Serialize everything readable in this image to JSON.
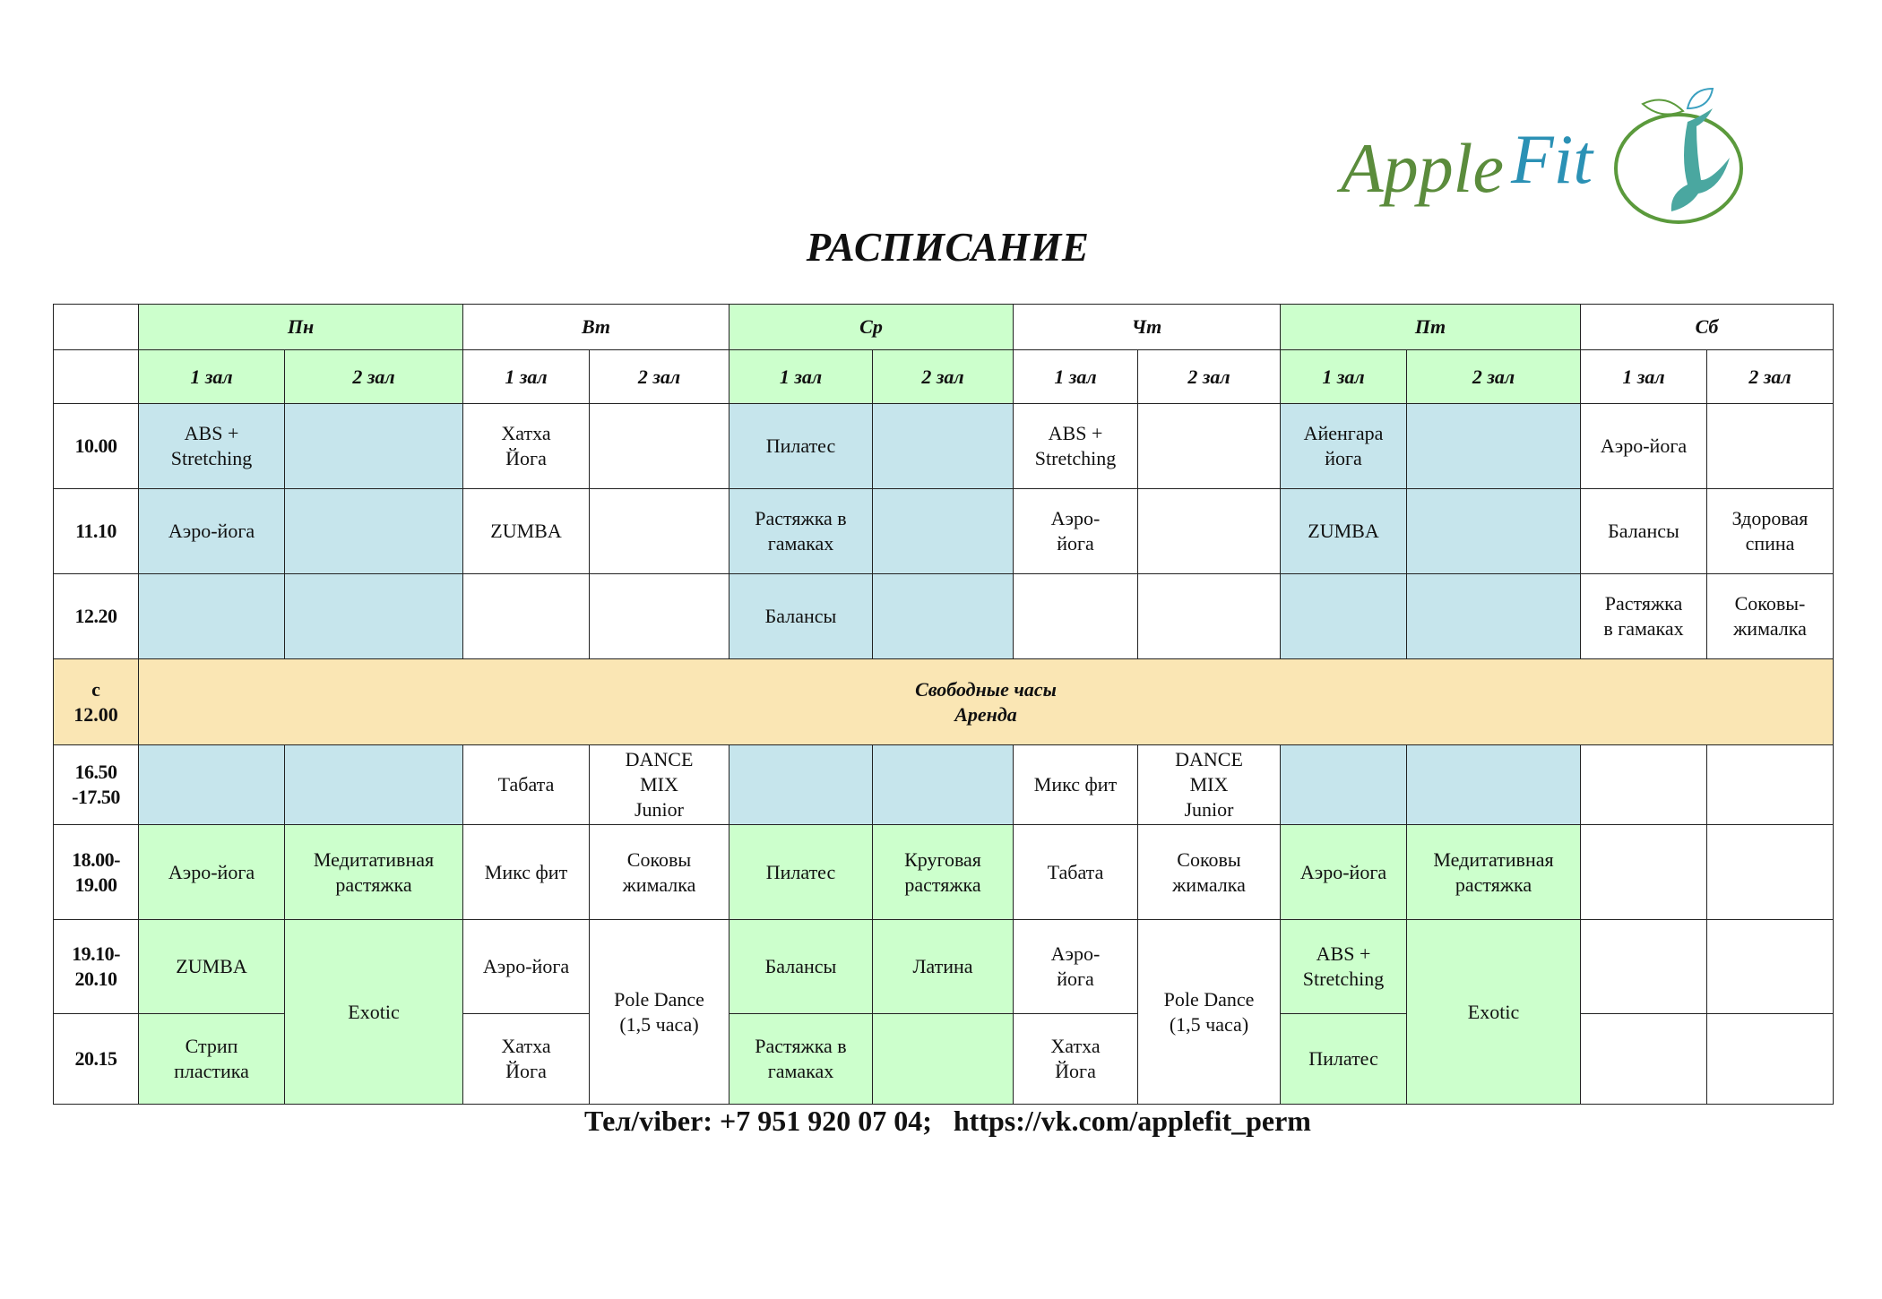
{
  "logo": {
    "text_apple": "Apple",
    "text_fit": "Fit"
  },
  "title": "РАСПИСАНИЕ",
  "days": [
    "Пн",
    "Вт",
    "Ср",
    "Чт",
    "Пт",
    "Сб"
  ],
  "halls": [
    "1 зал",
    "2 зал"
  ],
  "colors": {
    "green": "#ccffcc",
    "blue": "#c6e5ec",
    "beige": "#fae6b4"
  },
  "rows": [
    {
      "time": "10.00",
      "cells": [
        "ABS +\nStretching",
        "",
        "Хатха\nЙога",
        "",
        "Пилатес",
        "",
        "ABS +\nStretching",
        "",
        "Айенгара\nйога",
        "",
        "Аэро-йога",
        ""
      ]
    },
    {
      "time": "11.10",
      "cells": [
        "Аэро-йога",
        "",
        "ZUMBA",
        "",
        "Растяжка в\nгамаках",
        "",
        "Аэро-\nйога",
        "",
        "ZUMBA",
        "",
        "Балансы",
        "Здоровая\nспина"
      ]
    },
    {
      "time": "12.20",
      "cells": [
        "",
        "",
        "",
        "",
        "Балансы",
        "",
        "",
        "",
        "",
        "",
        "Растяжка\nв гамаках",
        "Соковы-\nжималка"
      ]
    },
    {
      "time": "с\n12.00",
      "free": "Свободные часы\nАренда"
    },
    {
      "time": "16.50\n-17.50",
      "cells": [
        "",
        "",
        "Табата",
        "DANCE\nMIX\nJunior",
        "",
        "",
        "Микс фит",
        "DANCE\nMIX\nJunior",
        "",
        "",
        "",
        ""
      ]
    },
    {
      "time": "18.00-\n19.00",
      "cells": [
        "Аэро-йога",
        "Медитативная\nрастяжка",
        "Микс фит",
        "Соковы\nжималка",
        "Пилатес",
        "Круговая\nрастяжка",
        "Табата",
        "Соковы\nжималка",
        "Аэро-йога",
        "Медитативная\nрастяжка",
        "",
        ""
      ]
    },
    {
      "time": "19.10-\n20.10",
      "cells": [
        "ZUMBA",
        "Exotic",
        "Аэро-йога",
        "Pole Dance\n(1,5 часа)",
        "Балансы",
        "Латина",
        "Аэро-\nйога",
        "Pole Dance\n(1,5 часа)",
        "ABS +\nStretching",
        "Exotic",
        "",
        ""
      ]
    },
    {
      "time": "20.15",
      "cells": [
        "Стрип\nпластика",
        null,
        "Хатха\nЙога",
        null,
        "Растяжка в\nгамаках",
        "",
        "Хатха\nЙога",
        null,
        "Пилатес",
        null,
        "",
        ""
      ]
    }
  ],
  "footer": "Тел/viber: +7 951 920 07 04;   https://vk.com/applefit_perm"
}
